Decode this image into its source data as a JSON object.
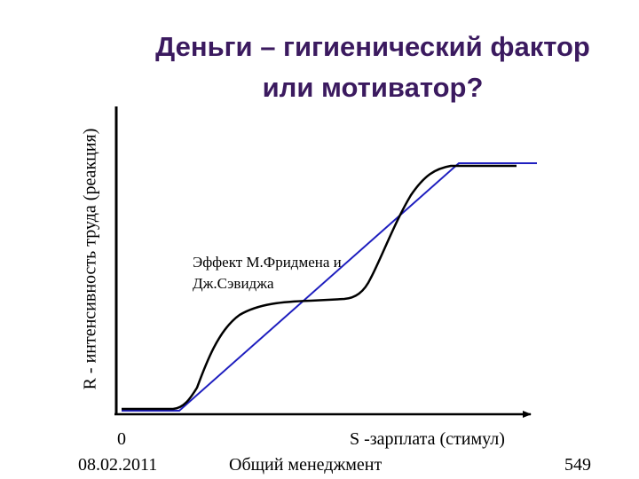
{
  "slide": {
    "title_line1": "Деньги – гигиенический фактор",
    "title_line2": "или мотиватор?",
    "y_axis_label": "R - интенсивность труда (реакция)",
    "x_axis_label": "S -зарплата (стимул)",
    "origin_label": "0",
    "annotation_line1": "Эффект М.Фридмена и",
    "annotation_line2": "Дж.Сэвиджа",
    "footer_date": "08.02.2011",
    "footer_course": "Общий менеджмент",
    "footer_page": "549"
  },
  "colors": {
    "title": "#3b1a5f",
    "straight_line": "#1f1fbf",
    "curve": "#000000"
  }
}
